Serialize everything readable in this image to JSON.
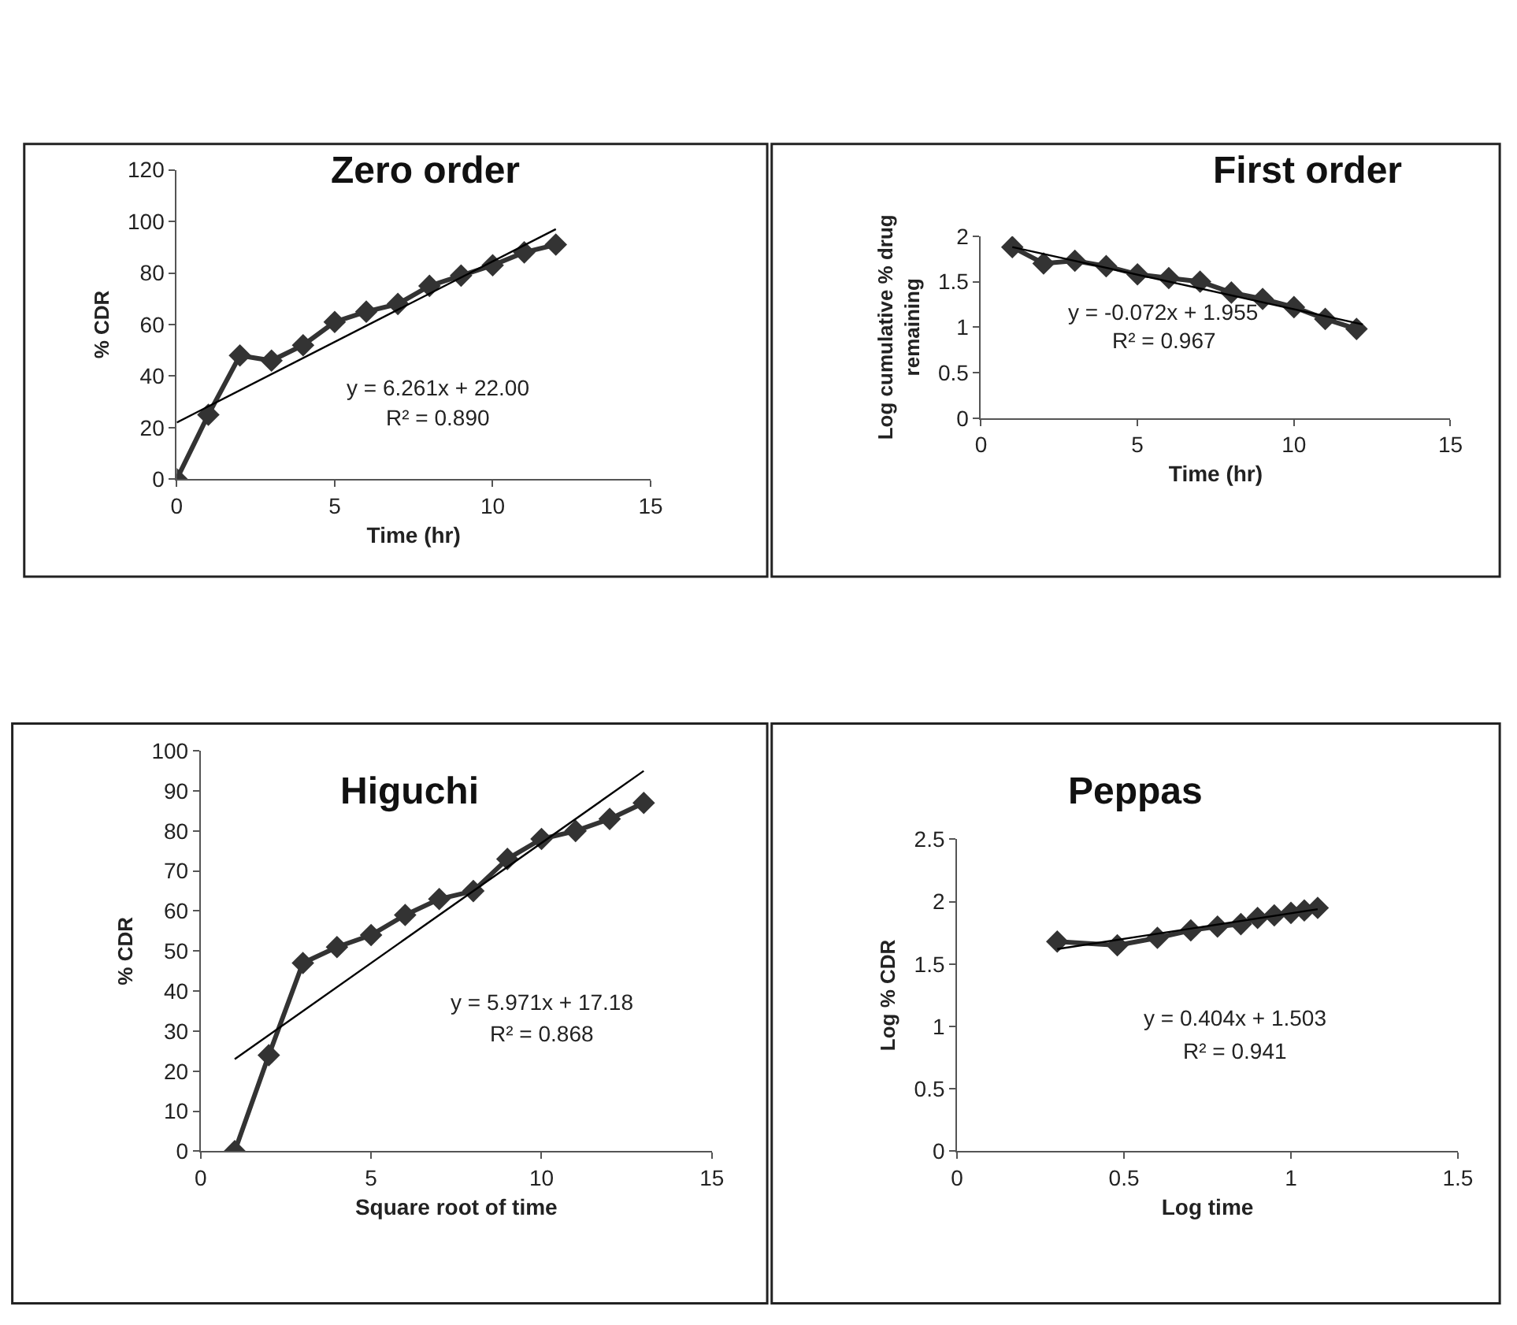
{
  "chart_data": [
    {
      "type": "line",
      "title": "Zero order",
      "xlabel": "Time (hr)",
      "ylabel": "% CDR",
      "xlim": [
        0,
        15
      ],
      "xticks": [
        0,
        5,
        10,
        15
      ],
      "ylim": [
        0,
        120
      ],
      "yticks": [
        0,
        20,
        40,
        60,
        80,
        100,
        120
      ],
      "marker": "diamond",
      "series": [
        {
          "color": "#333333",
          "x": [
            0,
            1,
            2,
            3,
            4,
            5,
            6,
            7,
            8,
            9,
            10,
            11,
            12
          ],
          "values": [
            0,
            25,
            48,
            46,
            52,
            61,
            65,
            68,
            75,
            79,
            83,
            88,
            91
          ]
        },
        {
          "type": "line",
          "marker": "none",
          "color": "#000000",
          "x": [
            0,
            12
          ],
          "values": [
            22,
            97
          ]
        }
      ],
      "annotations": [
        "y = 6.261x + 22.00",
        "R² = 0.890"
      ]
    },
    {
      "type": "line",
      "title": "First order",
      "xlabel": "Time (hr)",
      "ylabel": "Log cumulative % drug remaining",
      "xlim": [
        0,
        15
      ],
      "xticks": [
        0,
        5,
        10,
        15
      ],
      "ylim": [
        0,
        2
      ],
      "yticks": [
        0,
        0.5,
        1,
        1.5,
        2
      ],
      "marker": "diamond",
      "series": [
        {
          "color": "#333333",
          "x": [
            1,
            2,
            3,
            4,
            5,
            6,
            7,
            8,
            9,
            10,
            11,
            12
          ],
          "values": [
            1.88,
            1.7,
            1.73,
            1.67,
            1.58,
            1.54,
            1.5,
            1.38,
            1.31,
            1.22,
            1.09,
            0.98
          ]
        },
        {
          "type": "line",
          "marker": "none",
          "color": "#000000",
          "x": [
            1,
            12.2
          ],
          "values": [
            1.88,
            1.03
          ]
        }
      ],
      "annotations": [
        "y = -0.072x + 1.955",
        "R² = 0.967"
      ]
    },
    {
      "type": "line",
      "title": "Higuchi",
      "xlabel": "Square root of time",
      "ylabel": "% CDR",
      "xlim": [
        0,
        15
      ],
      "xticks": [
        0,
        5,
        10,
        15
      ],
      "ylim": [
        0,
        100
      ],
      "yticks": [
        0,
        10,
        20,
        30,
        40,
        50,
        60,
        70,
        80,
        90,
        100
      ],
      "marker": "diamond",
      "series": [
        {
          "color": "#333333",
          "x": [
            1,
            2,
            3,
            4,
            5,
            6,
            7,
            8,
            9,
            10,
            11,
            12,
            13
          ],
          "values": [
            0,
            24,
            47,
            51,
            54,
            59,
            63,
            65,
            73,
            78,
            80,
            83,
            87
          ]
        },
        {
          "type": "line",
          "marker": "none",
          "color": "#000000",
          "x": [
            1,
            13
          ],
          "values": [
            23,
            95
          ]
        }
      ],
      "annotations": [
        "y = 5.971x + 17.18",
        "R² = 0.868"
      ]
    },
    {
      "type": "line",
      "title": "Peppas",
      "xlabel": "Log time",
      "ylabel": "Log % CDR",
      "xlim": [
        0,
        1.5
      ],
      "xticks": [
        0,
        0.5,
        1,
        1.5
      ],
      "ylim": [
        0,
        2.5
      ],
      "yticks": [
        0,
        0.5,
        1,
        1.5,
        2,
        2.5
      ],
      "marker": "diamond",
      "series": [
        {
          "color": "#333333",
          "x": [
            0.3,
            0.48,
            0.6,
            0.7,
            0.78,
            0.85,
            0.9,
            0.95,
            1.0,
            1.04,
            1.08
          ],
          "values": [
            1.68,
            1.65,
            1.71,
            1.77,
            1.8,
            1.82,
            1.87,
            1.89,
            1.91,
            1.93,
            1.95
          ]
        },
        {
          "type": "line",
          "marker": "none",
          "color": "#000000",
          "x": [
            0.3,
            1.08
          ],
          "values": [
            1.62,
            1.94
          ]
        }
      ],
      "annotations": [
        "y = 0.404x + 1.503",
        "R² = 0.941"
      ]
    }
  ]
}
